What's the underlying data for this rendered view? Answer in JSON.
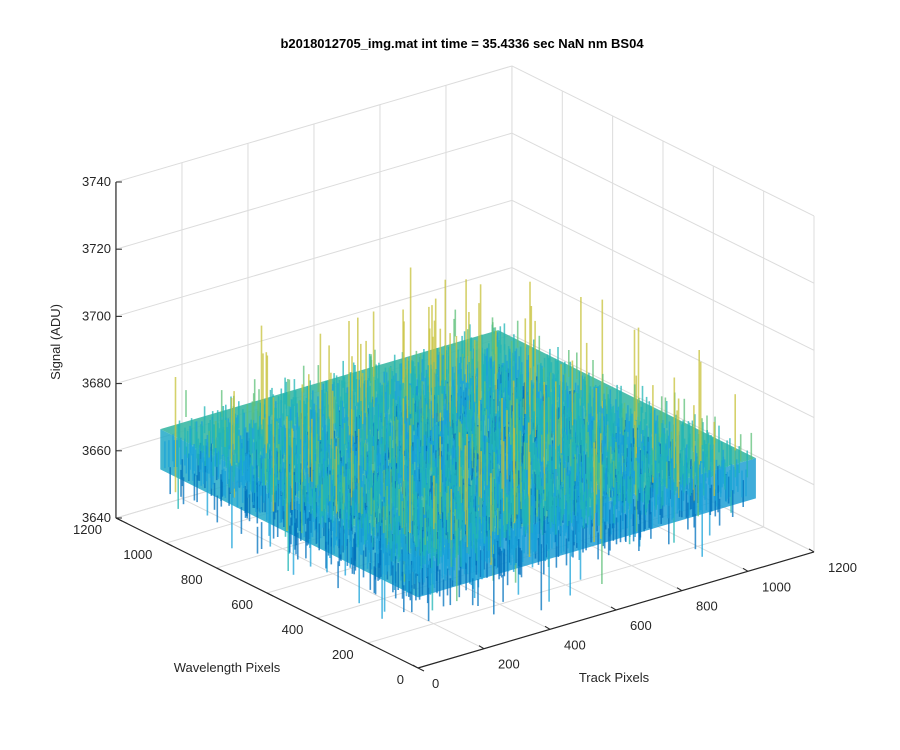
{
  "chart_data": {
    "type": "surface",
    "title": "b2018012705_img.mat int time = 35.4336 sec  NaN nm BS04",
    "xlabel": "Track Pixels",
    "ylabel": "Wavelength Pixels",
    "zlabel": "Signal (ADU)",
    "xlim": [
      0,
      1200
    ],
    "ylim": [
      0,
      1200
    ],
    "zlim": [
      3640,
      3740
    ],
    "xticks": [
      "0",
      "200",
      "400",
      "600",
      "800",
      "1000",
      "1200"
    ],
    "yticks": [
      "0",
      "200",
      "400",
      "600",
      "800",
      "1000",
      "1200"
    ],
    "zticks": [
      "3640",
      "3660",
      "3680",
      "3700",
      "3720",
      "3740"
    ],
    "grid": true,
    "surface_extent": {
      "x": [
        0,
        1024
      ],
      "y": [
        0,
        1024
      ]
    },
    "signal_mean": 3667,
    "signal_spread": [
      3645,
      3712
    ],
    "colormap": [
      "#0072BD",
      "#1AA3D9",
      "#22B5B5",
      "#5FC07A",
      "#C7C23A"
    ]
  }
}
